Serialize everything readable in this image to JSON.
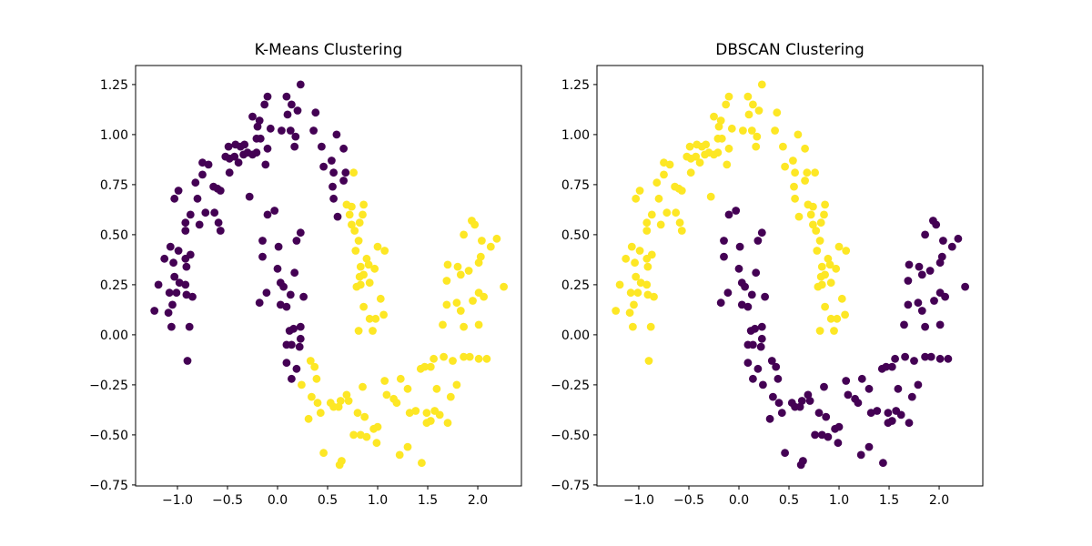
{
  "figure": {
    "background": "#ffffff"
  },
  "chart_data": [
    {
      "type": "scatter",
      "title": "K-Means Clustering",
      "xlabel": "",
      "ylabel": "",
      "xlim": [
        -1.418,
        2.436
      ],
      "ylim": [
        -0.755,
        1.345
      ],
      "xtick_values": [
        -1.0,
        -0.5,
        0.0,
        0.5,
        1.0,
        1.5,
        2.0
      ],
      "xtick_labels": [
        "−1.0",
        "−0.5",
        "0.0",
        "0.5",
        "1.0",
        "1.5",
        "2.0"
      ],
      "ytick_values": [
        1.25,
        1.0,
        0.75,
        0.5,
        0.25,
        0.0,
        -0.25,
        -0.5,
        -0.75
      ],
      "ytick_labels": [
        "1.25",
        "1.00",
        "0.75",
        "0.50",
        "0.25",
        "0.00",
        "−0.25",
        "−0.50",
        "−0.75"
      ],
      "grid": false,
      "legend": "none",
      "label_index": 2,
      "cluster_colors": [
        "#440154",
        "#fde725"
      ],
      "marker_radius_px": 4.4
    },
    {
      "type": "scatter",
      "title": "DBSCAN Clustering",
      "xlabel": "",
      "ylabel": "",
      "xlim": [
        -1.418,
        2.436
      ],
      "ylim": [
        -0.755,
        1.345
      ],
      "xtick_values": [
        -1.0,
        -0.5,
        0.0,
        0.5,
        1.0,
        1.5,
        2.0
      ],
      "xtick_labels": [
        "−1.0",
        "−0.5",
        "0.0",
        "0.5",
        "1.0",
        "1.5",
        "2.0"
      ],
      "ytick_values": [
        1.25,
        1.0,
        0.75,
        0.5,
        0.25,
        0.0,
        -0.25,
        -0.5,
        -0.75
      ],
      "ytick_labels": [
        "1.25",
        "1.00",
        "0.75",
        "0.50",
        "0.25",
        "0.00",
        "−0.25",
        "−0.50",
        "−0.75"
      ],
      "grid": false,
      "legend": "none",
      "label_index": 3,
      "cluster_colors": [
        "#440154",
        "#fde725"
      ],
      "marker_radius_px": 4.4
    }
  ],
  "points_format": "[x, y, kmeans_label, dbscan_label] ; label 0 = purple #440154, 1 = yellow #fde725",
  "points": [
    [
      0.23,
      1.25,
      0,
      1
    ],
    [
      -0.1,
      1.19,
      0,
      1
    ],
    [
      0.09,
      1.19,
      0,
      1
    ],
    [
      -0.13,
      1.15,
      0,
      1
    ],
    [
      0.14,
      1.15,
      0,
      1
    ],
    [
      0.2,
      1.12,
      0,
      1
    ],
    [
      0.1,
      1.1,
      0,
      1
    ],
    [
      0.38,
      1.11,
      0,
      1
    ],
    [
      -0.25,
      1.09,
      0,
      1
    ],
    [
      -0.18,
      1.07,
      0,
      1
    ],
    [
      -0.07,
      1.03,
      0,
      1
    ],
    [
      0.04,
      1.02,
      0,
      1
    ],
    [
      0.13,
      1.02,
      0,
      1
    ],
    [
      0.36,
      1.02,
      0,
      1
    ],
    [
      0.18,
      0.99,
      0,
      1
    ],
    [
      -0.2,
      1.04,
      0,
      1
    ],
    [
      -0.21,
      0.98,
      0,
      1
    ],
    [
      -0.17,
      0.98,
      0,
      1
    ],
    [
      0.17,
      0.94,
      0,
      1
    ],
    [
      0.44,
      0.94,
      0,
      1
    ],
    [
      -0.49,
      0.94,
      0,
      1
    ],
    [
      -0.42,
      0.95,
      0,
      1
    ],
    [
      -0.37,
      0.94,
      0,
      1
    ],
    [
      -0.33,
      0.95,
      0,
      1
    ],
    [
      -0.3,
      0.91,
      0,
      1
    ],
    [
      -0.34,
      0.9,
      0,
      1
    ],
    [
      -0.25,
      0.9,
      0,
      1
    ],
    [
      -0.21,
      0.91,
      0,
      1
    ],
    [
      -0.1,
      0.93,
      0,
      1
    ],
    [
      -0.52,
      0.89,
      0,
      1
    ],
    [
      -0.48,
      0.88,
      0,
      1
    ],
    [
      -0.43,
      0.89,
      0,
      1
    ],
    [
      -0.39,
      0.86,
      0,
      1
    ],
    [
      -0.12,
      0.85,
      0,
      1
    ],
    [
      -0.75,
      0.86,
      0,
      1
    ],
    [
      -0.69,
      0.85,
      0,
      1
    ],
    [
      -0.48,
      0.81,
      0,
      1
    ],
    [
      -0.82,
      0.76,
      0,
      1
    ],
    [
      -0.75,
      0.8,
      0,
      1
    ],
    [
      -0.64,
      0.74,
      0,
      1
    ],
    [
      -0.6,
      0.73,
      0,
      1
    ],
    [
      -0.99,
      0.72,
      0,
      1
    ],
    [
      -1.03,
      0.68,
      0,
      1
    ],
    [
      -0.8,
      0.68,
      0,
      1
    ],
    [
      -0.57,
      0.72,
      0,
      1
    ],
    [
      -0.28,
      0.69,
      0,
      1
    ],
    [
      0.46,
      0.84,
      0,
      1
    ],
    [
      -0.87,
      0.6,
      0,
      1
    ],
    [
      -0.92,
      0.56,
      0,
      1
    ],
    [
      -0.78,
      0.55,
      0,
      1
    ],
    [
      -0.72,
      0.61,
      0,
      1
    ],
    [
      -0.63,
      0.61,
      0,
      1
    ],
    [
      -0.59,
      0.56,
      0,
      1
    ],
    [
      -0.92,
      0.52,
      0,
      1
    ],
    [
      -0.57,
      0.52,
      0,
      1
    ],
    [
      -1.07,
      0.44,
      0,
      1
    ],
    [
      -0.99,
      0.42,
      0,
      1
    ],
    [
      -1.13,
      0.38,
      0,
      1
    ],
    [
      -1.04,
      0.36,
      0,
      1
    ],
    [
      -0.92,
      0.38,
      0,
      1
    ],
    [
      -0.87,
      0.4,
      0,
      1
    ],
    [
      -0.91,
      0.34,
      0,
      1
    ],
    [
      -1.03,
      0.29,
      0,
      1
    ],
    [
      -0.98,
      0.26,
      0,
      1
    ],
    [
      -1.19,
      0.25,
      0,
      1
    ],
    [
      -0.92,
      0.25,
      0,
      1
    ],
    [
      -1.08,
      0.21,
      0,
      1
    ],
    [
      -1.01,
      0.21,
      0,
      1
    ],
    [
      -0.91,
      0.2,
      0,
      1
    ],
    [
      -0.85,
      0.19,
      0,
      1
    ],
    [
      -1.23,
      0.12,
      0,
      1
    ],
    [
      -1.09,
      0.11,
      0,
      1
    ],
    [
      -1.05,
      0.15,
      0,
      1
    ],
    [
      -1.06,
      0.04,
      0,
      1
    ],
    [
      -0.88,
      0.04,
      0,
      1
    ],
    [
      -0.9,
      -0.13,
      0,
      1
    ],
    [
      0.59,
      1.0,
      0,
      1
    ],
    [
      0.66,
      0.93,
      0,
      1
    ],
    [
      0.54,
      0.87,
      0,
      1
    ],
    [
      0.56,
      0.81,
      0,
      1
    ],
    [
      0.68,
      0.81,
      0,
      1
    ],
    [
      0.76,
      0.81,
      1,
      1
    ],
    [
      0.66,
      0.77,
      0,
      1
    ],
    [
      0.55,
      0.74,
      0,
      1
    ],
    [
      0.56,
      0.68,
      0,
      1
    ],
    [
      0.69,
      0.65,
      1,
      1
    ],
    [
      0.74,
      0.64,
      1,
      1
    ],
    [
      0.86,
      0.65,
      1,
      1
    ],
    [
      0.6,
      0.59,
      0,
      1
    ],
    [
      0.72,
      0.6,
      1,
      1
    ],
    [
      0.85,
      0.6,
      1,
      1
    ],
    [
      0.74,
      0.55,
      1,
      1
    ],
    [
      0.82,
      0.56,
      1,
      1
    ],
    [
      0.77,
      0.52,
      1,
      1
    ],
    [
      0.81,
      0.47,
      1,
      1
    ],
    [
      0.78,
      0.42,
      1,
      1
    ],
    [
      1.0,
      0.44,
      1,
      1
    ],
    [
      1.07,
      0.42,
      1,
      1
    ],
    [
      0.89,
      0.38,
      1,
      1
    ],
    [
      0.83,
      0.34,
      1,
      1
    ],
    [
      0.91,
      0.35,
      1,
      1
    ],
    [
      0.97,
      0.33,
      1,
      1
    ],
    [
      0.86,
      0.3,
      1,
      1
    ],
    [
      0.82,
      0.29,
      1,
      1
    ],
    [
      0.79,
      0.24,
      1,
      1
    ],
    [
      0.83,
      0.25,
      1,
      1
    ],
    [
      0.92,
      0.26,
      1,
      1
    ],
    [
      1.03,
      0.18,
      1,
      1
    ],
    [
      0.86,
      0.14,
      1,
      1
    ],
    [
      1.06,
      0.1,
      1,
      1
    ],
    [
      0.92,
      0.08,
      1,
      1
    ],
    [
      0.98,
      0.08,
      1,
      1
    ],
    [
      0.81,
      0.02,
      1,
      1
    ],
    [
      0.95,
      0.02,
      1,
      1
    ],
    [
      -0.03,
      0.62,
      0,
      0
    ],
    [
      -0.1,
      0.6,
      0,
      0
    ],
    [
      -0.15,
      0.47,
      0,
      0
    ],
    [
      0.01,
      0.44,
      0,
      0
    ],
    [
      -0.15,
      0.39,
      0,
      0
    ],
    [
      0.19,
      0.47,
      0,
      0
    ],
    [
      0.23,
      0.51,
      0,
      0
    ],
    [
      0.0,
      0.33,
      0,
      0
    ],
    [
      0.03,
      0.26,
      0,
      0
    ],
    [
      0.06,
      0.24,
      0,
      0
    ],
    [
      0.17,
      0.31,
      0,
      0
    ],
    [
      -0.11,
      0.21,
      0,
      0
    ],
    [
      -0.18,
      0.16,
      0,
      0
    ],
    [
      0.03,
      0.15,
      0,
      0
    ],
    [
      0.09,
      0.14,
      0,
      0
    ],
    [
      0.13,
      0.2,
      0,
      0
    ],
    [
      0.26,
      0.19,
      0,
      0
    ],
    [
      0.16,
      0.03,
      0,
      0
    ],
    [
      0.23,
      0.04,
      0,
      0
    ],
    [
      0.12,
      0.02,
      0,
      0
    ],
    [
      0.09,
      -0.05,
      0,
      0
    ],
    [
      0.14,
      -0.05,
      0,
      0
    ],
    [
      0.22,
      -0.06,
      0,
      0
    ],
    [
      0.23,
      -0.02,
      0,
      0
    ],
    [
      0.09,
      -0.14,
      0,
      0
    ],
    [
      0.19,
      -0.17,
      0,
      0
    ],
    [
      0.14,
      -0.22,
      0,
      0
    ],
    [
      0.24,
      -0.25,
      1,
      0
    ],
    [
      0.33,
      -0.13,
      1,
      0
    ],
    [
      0.37,
      -0.16,
      1,
      0
    ],
    [
      0.39,
      -0.22,
      1,
      0
    ],
    [
      0.34,
      -0.31,
      1,
      0
    ],
    [
      0.4,
      -0.34,
      1,
      0
    ],
    [
      0.43,
      -0.39,
      1,
      0
    ],
    [
      0.31,
      -0.42,
      1,
      0
    ],
    [
      0.46,
      -0.59,
      1,
      0
    ],
    [
      0.53,
      -0.34,
      1,
      0
    ],
    [
      0.56,
      -0.36,
      1,
      0
    ],
    [
      0.63,
      -0.33,
      1,
      0
    ],
    [
      0.69,
      -0.3,
      1,
      0
    ],
    [
      0.71,
      -0.33,
      1,
      0
    ],
    [
      0.61,
      -0.36,
      1,
      0
    ],
    [
      0.85,
      -0.26,
      1,
      0
    ],
    [
      0.8,
      -0.39,
      1,
      0
    ],
    [
      0.87,
      -0.41,
      1,
      0
    ],
    [
      0.89,
      -0.51,
      1,
      0
    ],
    [
      0.83,
      -0.5,
      1,
      0
    ],
    [
      0.76,
      -0.5,
      1,
      0
    ],
    [
      0.96,
      -0.47,
      1,
      0
    ],
    [
      1.0,
      -0.46,
      1,
      0
    ],
    [
      1.07,
      -0.23,
      1,
      0
    ],
    [
      1.23,
      -0.22,
      1,
      0
    ],
    [
      1.09,
      -0.3,
      1,
      0
    ],
    [
      1.16,
      -0.32,
      1,
      0
    ],
    [
      1.19,
      -0.34,
      1,
      0
    ],
    [
      1.3,
      -0.27,
      1,
      0
    ],
    [
      1.32,
      -0.39,
      1,
      0
    ],
    [
      1.38,
      -0.38,
      1,
      0
    ],
    [
      0.99,
      -0.54,
      1,
      0
    ],
    [
      1.22,
      -0.6,
      1,
      0
    ],
    [
      1.3,
      -0.56,
      1,
      0
    ],
    [
      1.44,
      -0.64,
      1,
      0
    ],
    [
      0.64,
      -0.63,
      1,
      0
    ],
    [
      0.62,
      -0.65,
      1,
      0
    ],
    [
      1.49,
      -0.39,
      1,
      0
    ],
    [
      1.57,
      -0.38,
      1,
      0
    ],
    [
      1.62,
      -0.4,
      1,
      0
    ],
    [
      1.53,
      -0.43,
      1,
      0
    ],
    [
      1.49,
      -0.44,
      1,
      0
    ],
    [
      1.59,
      -0.27,
      1,
      0
    ],
    [
      1.73,
      -0.31,
      1,
      0
    ],
    [
      1.79,
      -0.25,
      1,
      0
    ],
    [
      1.7,
      -0.44,
      1,
      0
    ],
    [
      1.43,
      -0.17,
      1,
      0
    ],
    [
      1.56,
      -0.12,
      1,
      0
    ],
    [
      1.47,
      -0.16,
      1,
      0
    ],
    [
      1.53,
      -0.16,
      1,
      0
    ],
    [
      1.66,
      -0.11,
      1,
      0
    ],
    [
      1.75,
      -0.13,
      1,
      0
    ],
    [
      1.86,
      -0.11,
      1,
      0
    ],
    [
      1.92,
      -0.11,
      1,
      0
    ],
    [
      2.01,
      -0.12,
      1,
      0
    ],
    [
      2.09,
      -0.12,
      1,
      0
    ],
    [
      1.94,
      0.57,
      1,
      0
    ],
    [
      1.97,
      0.55,
      1,
      0
    ],
    [
      1.86,
      0.5,
      1,
      0
    ],
    [
      2.04,
      0.47,
      1,
      0
    ],
    [
      2.19,
      0.48,
      1,
      0
    ],
    [
      2.13,
      0.44,
      1,
      0
    ],
    [
      2.03,
      0.39,
      1,
      0
    ],
    [
      2.01,
      0.36,
      1,
      0
    ],
    [
      1.8,
      0.34,
      1,
      0
    ],
    [
      1.7,
      0.35,
      1,
      0
    ],
    [
      1.83,
      0.3,
      1,
      0
    ],
    [
      1.91,
      0.32,
      1,
      0
    ],
    [
      1.69,
      0.27,
      1,
      0
    ],
    [
      2.26,
      0.24,
      1,
      0
    ],
    [
      2.01,
      0.21,
      1,
      0
    ],
    [
      2.06,
      0.19,
      1,
      0
    ],
    [
      1.95,
      0.17,
      1,
      0
    ],
    [
      1.79,
      0.16,
      1,
      0
    ],
    [
      1.69,
      0.15,
      1,
      0
    ],
    [
      1.83,
      0.12,
      1,
      0
    ],
    [
      2.01,
      0.05,
      1,
      0
    ],
    [
      1.86,
      0.04,
      1,
      0
    ],
    [
      1.65,
      0.05,
      1,
      0
    ]
  ]
}
